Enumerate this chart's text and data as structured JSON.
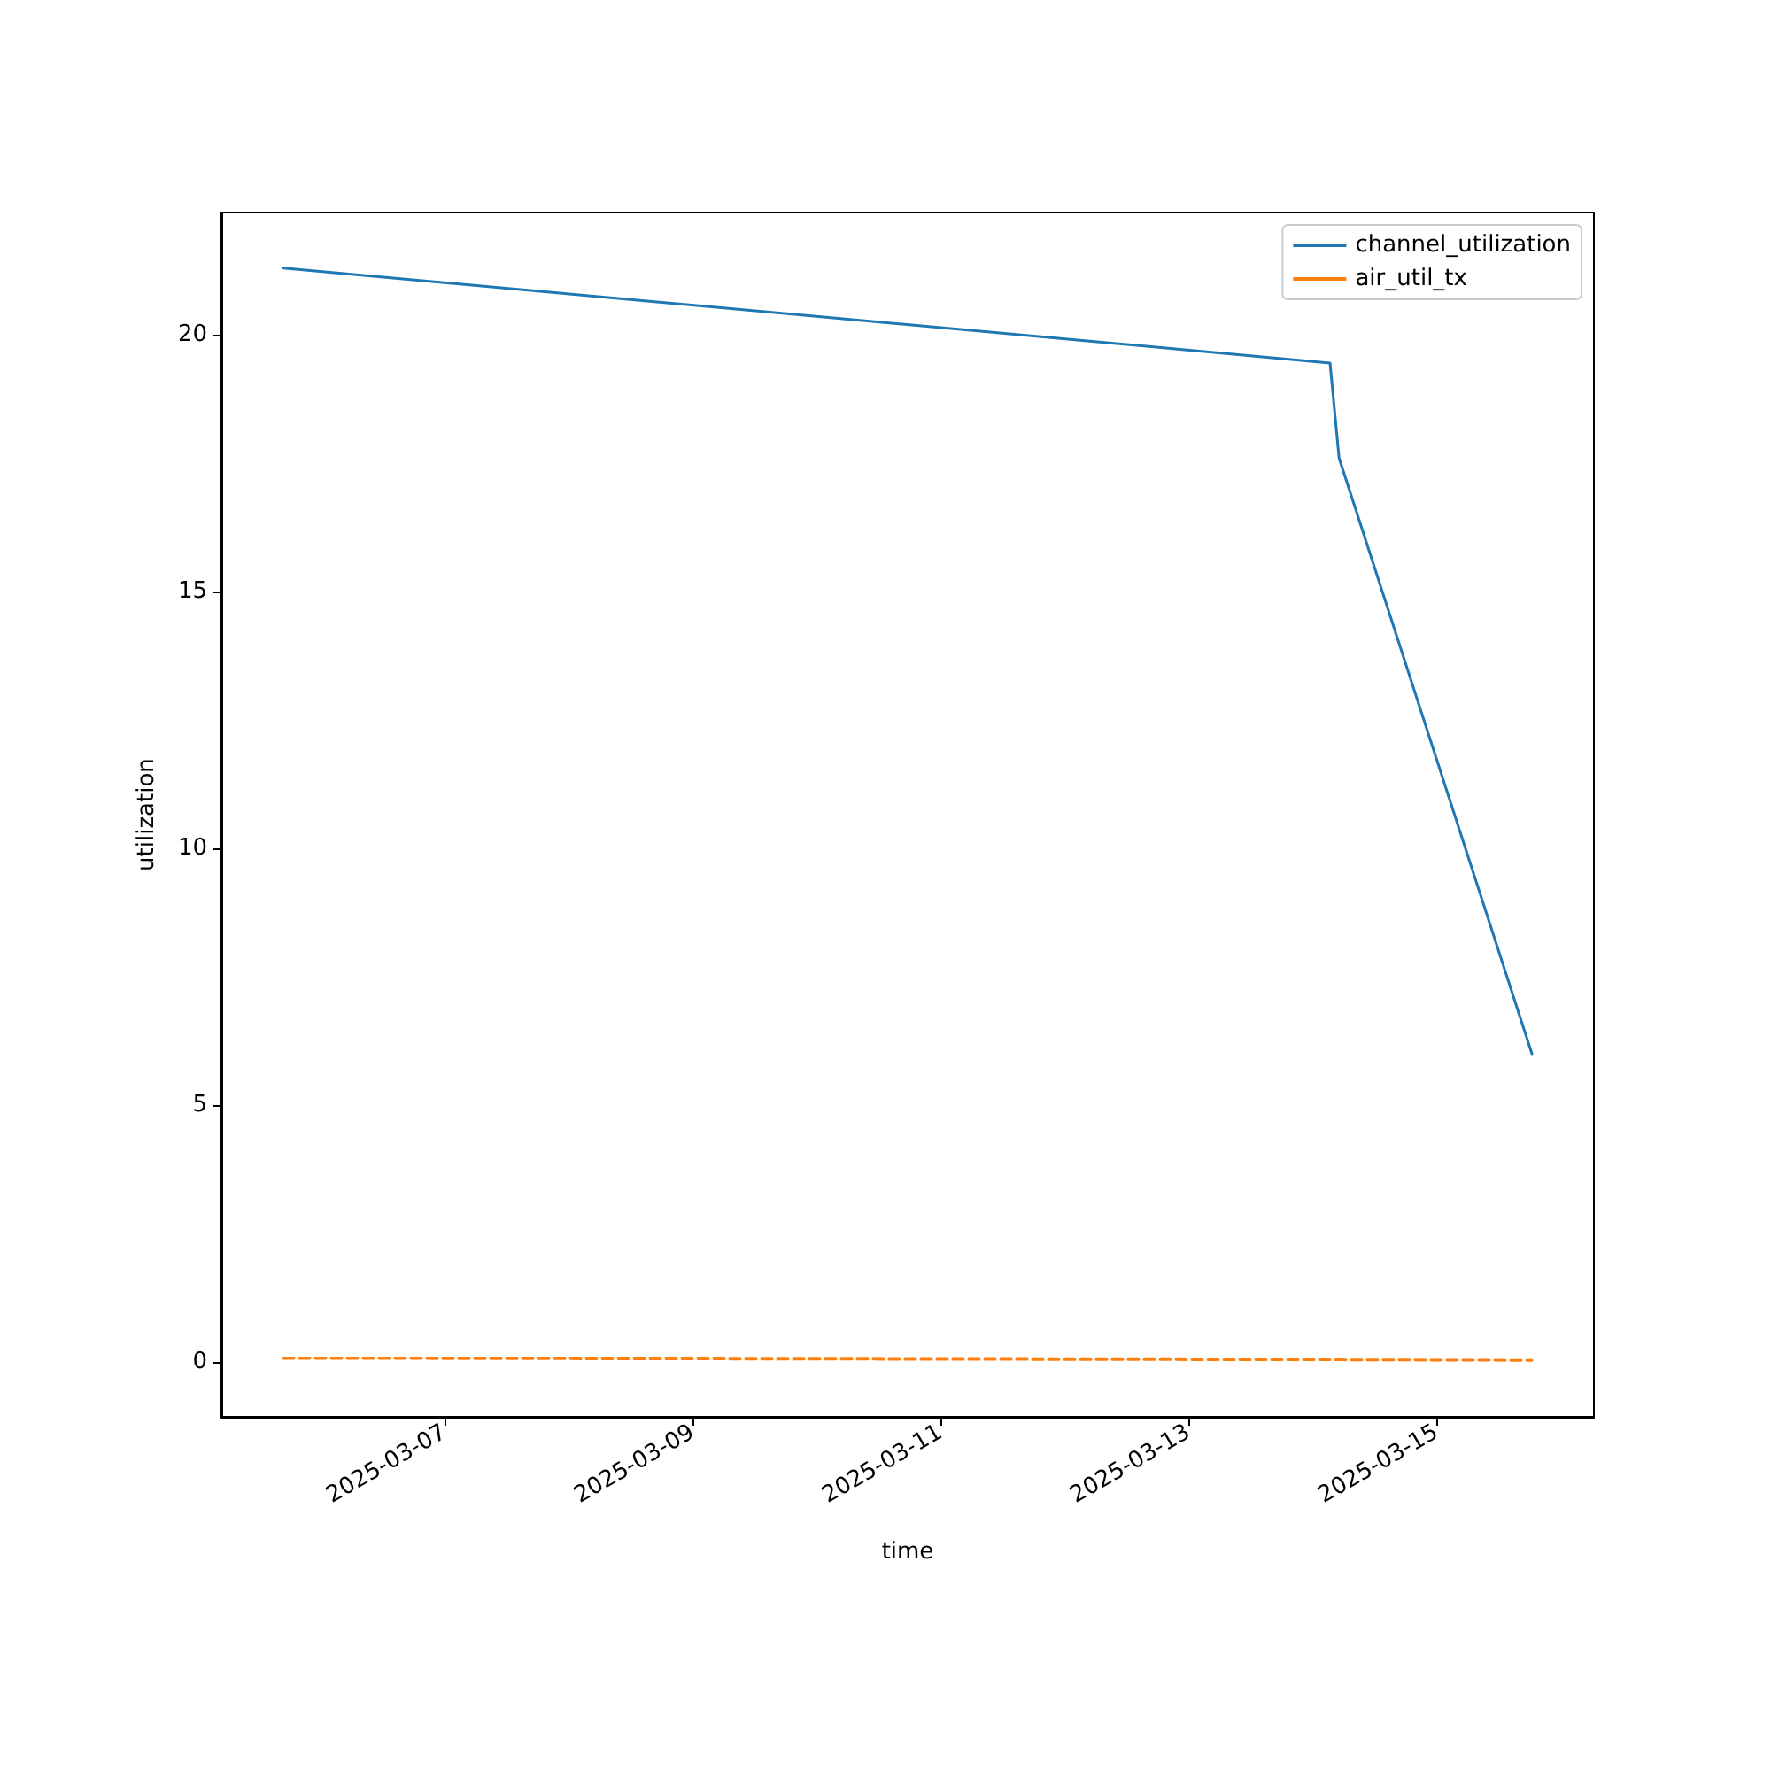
{
  "chart_data": {
    "type": "line",
    "xlabel": "time",
    "ylabel": "utilization",
    "x": [
      "2025-03-05T16:48",
      "2025-03-14T03:25",
      "2025-03-14T05:10",
      "2025-03-15T18:30"
    ],
    "series": [
      {
        "name": "channel_utilization",
        "color": "#1f77b4",
        "values": [
          21.3,
          19.45,
          17.6,
          6.0
        ],
        "line_style": "solid"
      },
      {
        "name": "air_util_tx",
        "color": "#ff7f0e",
        "values": [
          0.07,
          0.04,
          0.04,
          0.03
        ],
        "line_style": "dashed"
      }
    ],
    "xlim": [
      "2025-03-05T04:48",
      "2025-03-16T06:30"
    ],
    "xticks": [
      "2025-03-07",
      "2025-03-09",
      "2025-03-11",
      "2025-03-13",
      "2025-03-15"
    ],
    "ylim": [
      -1.07,
      22.38
    ],
    "yticks": [
      0,
      5,
      10,
      15,
      20
    ],
    "grid": false,
    "legend": "top right",
    "marker": "none"
  }
}
